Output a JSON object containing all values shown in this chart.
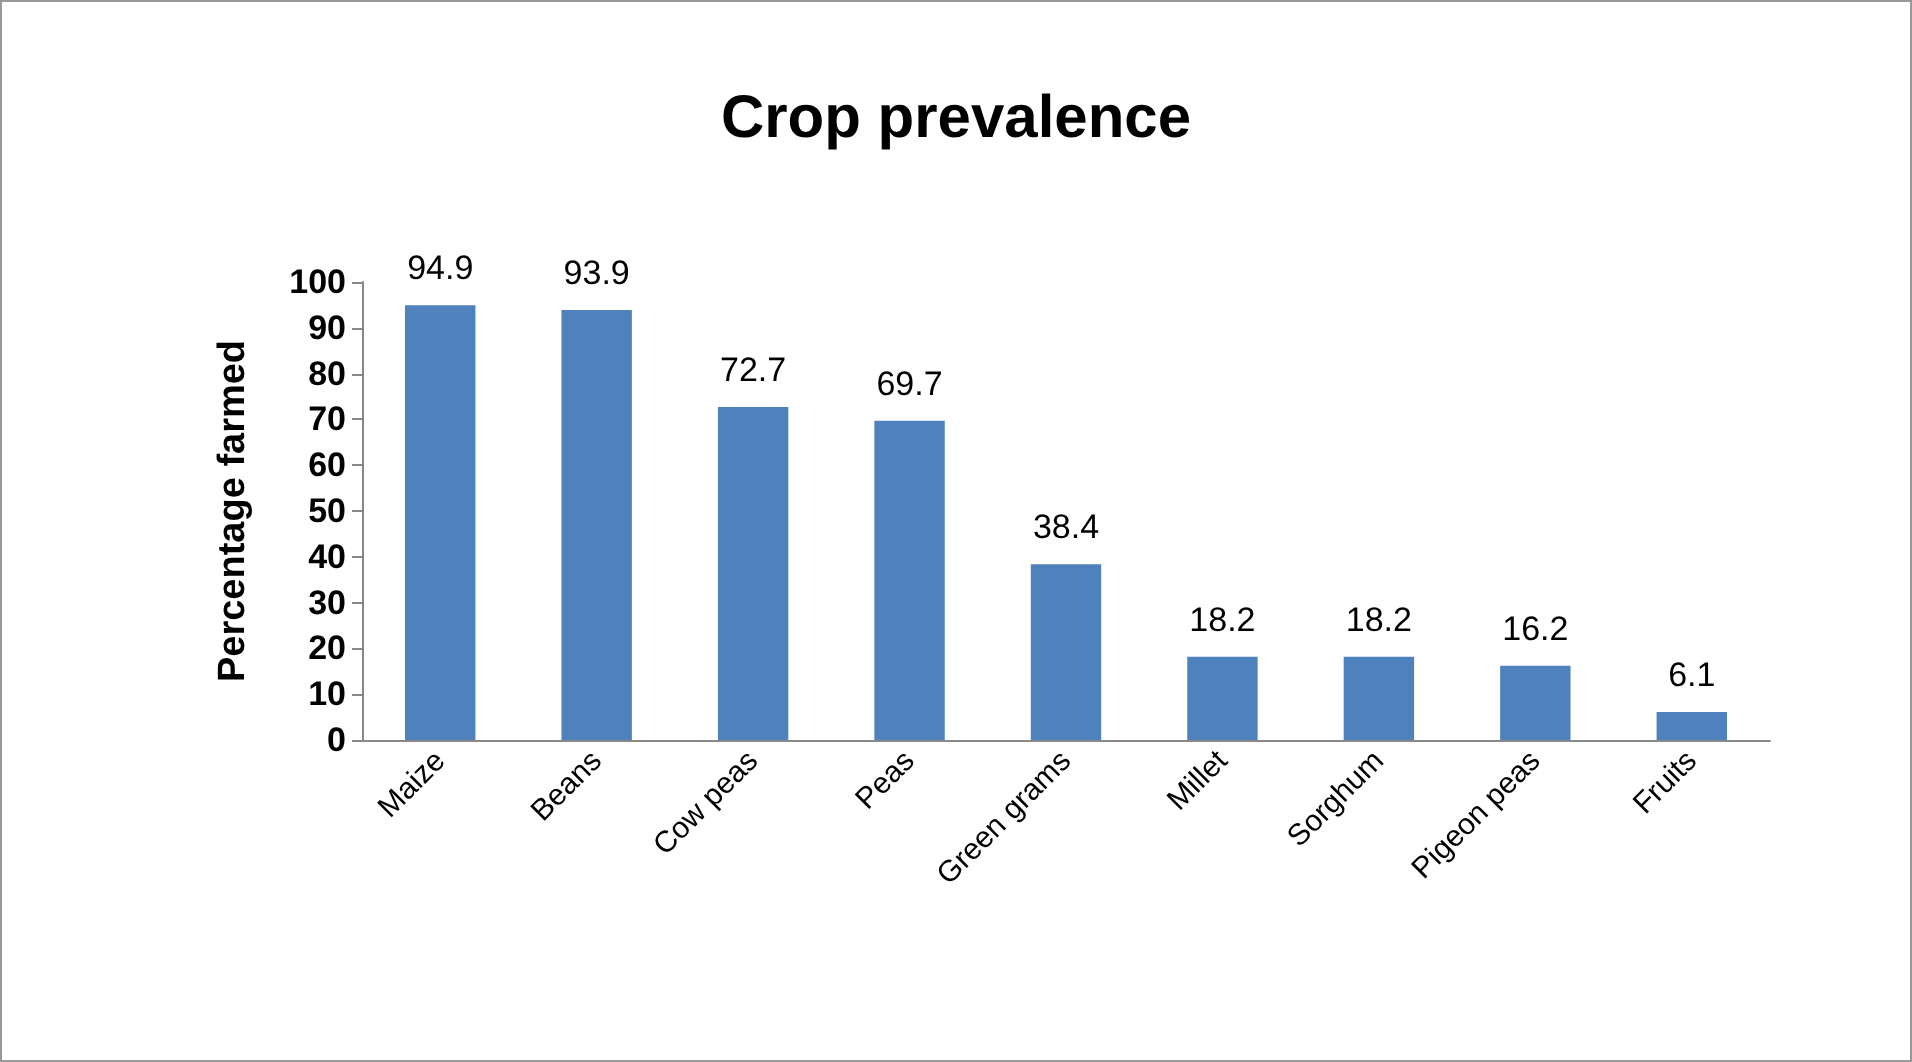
{
  "chart_data": {
    "type": "bar",
    "title": "Crop prevalence",
    "ylabel": "Percentage farmed",
    "categories": [
      "Maize",
      "Beans",
      "Cow peas",
      "Peas",
      "Green grams",
      "Millet",
      "Sorghum",
      "Pigeon peas",
      "Fruits"
    ],
    "values": [
      94.9,
      93.9,
      72.7,
      69.7,
      38.4,
      18.2,
      18.2,
      16.2,
      6.1
    ],
    "color": "#4f81bd",
    "ylim": [
      0,
      100
    ],
    "yticks": [
      0,
      10,
      20,
      30,
      40,
      50,
      60,
      70,
      80,
      90,
      100
    ],
    "grid": false,
    "data_labels": true
  }
}
